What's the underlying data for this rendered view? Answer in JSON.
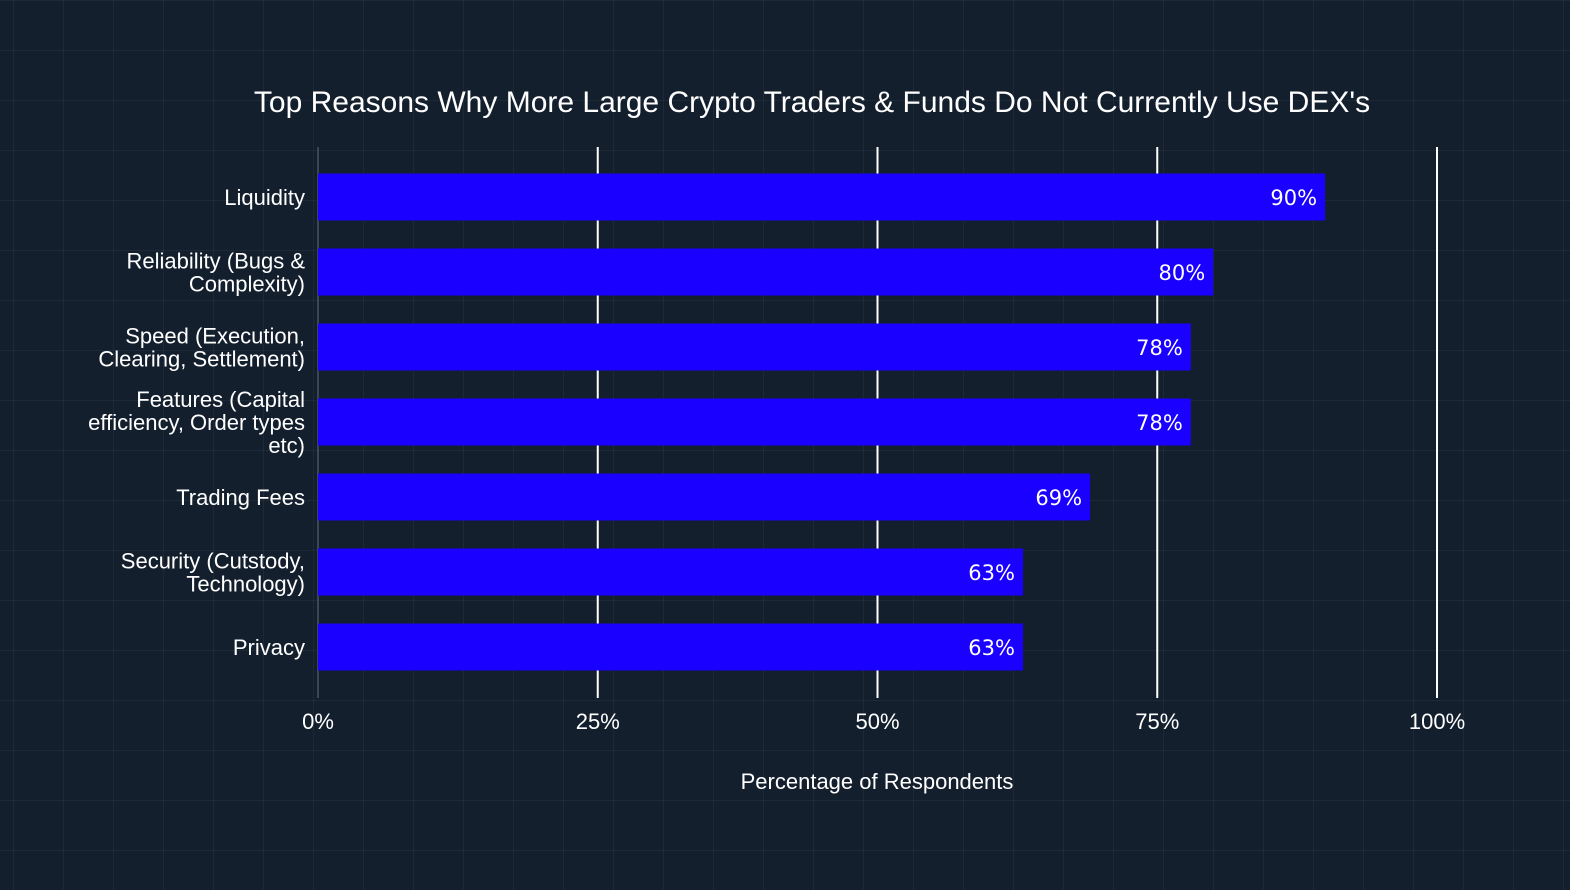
{
  "chart_data": {
    "type": "bar",
    "orientation": "horizontal",
    "title": "Top Reasons Why More Large Crypto Traders & Funds  Do Not Currently Use DEX's",
    "xlabel": "Percentage of Respondents",
    "ylabel": "",
    "xlim": [
      0,
      100
    ],
    "x_ticks": [
      0,
      25,
      50,
      75,
      100
    ],
    "x_tick_labels": [
      "0%",
      "25%",
      "50%",
      "75%",
      "100%"
    ],
    "grid": true,
    "categories": [
      [
        "Liquidity"
      ],
      [
        "Reliability (Bugs &",
        "Complexity)"
      ],
      [
        "Speed (Execution,",
        "Clearing, Settlement)"
      ],
      [
        "Features (Capital",
        "efficiency, Order types",
        "etc)"
      ],
      [
        "Trading Fees"
      ],
      [
        "Security (Cutstody,",
        "Technology)"
      ],
      [
        "Privacy"
      ]
    ],
    "values": [
      90,
      80,
      78,
      78,
      69,
      63,
      63
    ],
    "data_labels": [
      "90%",
      "80%",
      "78%",
      "78%",
      "69%",
      "63%",
      "63%"
    ]
  },
  "colors": {
    "background": "#141f2e",
    "bar": "#1a00ff",
    "grid": "#ffffff",
    "text": "#ffffff"
  }
}
